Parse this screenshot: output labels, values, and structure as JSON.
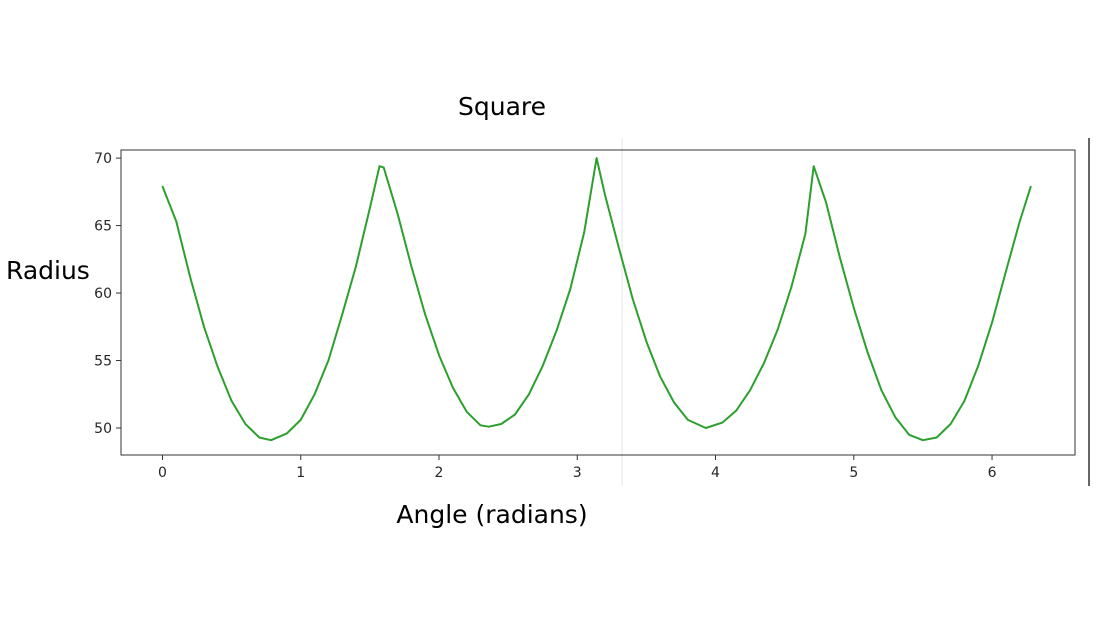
{
  "chart_data": {
    "type": "line",
    "title": "Square",
    "xlabel": "Angle (radians)",
    "ylabel": "Radius",
    "xlim": [
      -0.3,
      6.6
    ],
    "ylim": [
      48.0,
      70.6
    ],
    "xticks": [
      0,
      1,
      2,
      3,
      4,
      5,
      6
    ],
    "yticks": [
      50,
      55,
      60,
      65,
      70
    ],
    "grid": false,
    "legend": "none",
    "series": [
      {
        "color": "#2ca02c",
        "points": [
          [
            0.0,
            67.9
          ],
          [
            0.1,
            65.3
          ],
          [
            0.2,
            61.2
          ],
          [
            0.3,
            57.5
          ],
          [
            0.4,
            54.5
          ],
          [
            0.5,
            52.0
          ],
          [
            0.6,
            50.3
          ],
          [
            0.7,
            49.3
          ],
          [
            0.785,
            49.1
          ],
          [
            0.9,
            49.6
          ],
          [
            1.0,
            50.6
          ],
          [
            1.1,
            52.5
          ],
          [
            1.2,
            55.0
          ],
          [
            1.3,
            58.4
          ],
          [
            1.4,
            62.0
          ],
          [
            1.5,
            66.3
          ],
          [
            1.57,
            69.4
          ],
          [
            1.6,
            69.3
          ],
          [
            1.7,
            65.9
          ],
          [
            1.8,
            62.0
          ],
          [
            1.9,
            58.4
          ],
          [
            2.0,
            55.4
          ],
          [
            2.1,
            53.0
          ],
          [
            2.2,
            51.2
          ],
          [
            2.3,
            50.2
          ],
          [
            2.36,
            50.1
          ],
          [
            2.45,
            50.3
          ],
          [
            2.55,
            51.0
          ],
          [
            2.65,
            52.5
          ],
          [
            2.75,
            54.6
          ],
          [
            2.85,
            57.2
          ],
          [
            2.95,
            60.3
          ],
          [
            3.05,
            64.5
          ],
          [
            3.14,
            70.0
          ],
          [
            3.2,
            67.3
          ],
          [
            3.3,
            63.4
          ],
          [
            3.4,
            59.6
          ],
          [
            3.5,
            56.4
          ],
          [
            3.6,
            53.8
          ],
          [
            3.7,
            51.9
          ],
          [
            3.8,
            50.6
          ],
          [
            3.93,
            50.0
          ],
          [
            4.05,
            50.4
          ],
          [
            4.15,
            51.3
          ],
          [
            4.25,
            52.8
          ],
          [
            4.35,
            54.8
          ],
          [
            4.45,
            57.3
          ],
          [
            4.55,
            60.5
          ],
          [
            4.65,
            64.4
          ],
          [
            4.71,
            69.4
          ],
          [
            4.8,
            66.7
          ],
          [
            4.9,
            62.6
          ],
          [
            5.0,
            58.9
          ],
          [
            5.1,
            55.6
          ],
          [
            5.2,
            52.8
          ],
          [
            5.3,
            50.8
          ],
          [
            5.4,
            49.5
          ],
          [
            5.5,
            49.1
          ],
          [
            5.6,
            49.3
          ],
          [
            5.7,
            50.3
          ],
          [
            5.8,
            52.0
          ],
          [
            5.9,
            54.6
          ],
          [
            6.0,
            57.8
          ],
          [
            6.1,
            61.6
          ],
          [
            6.2,
            65.3
          ],
          [
            6.28,
            67.9
          ]
        ]
      }
    ]
  }
}
